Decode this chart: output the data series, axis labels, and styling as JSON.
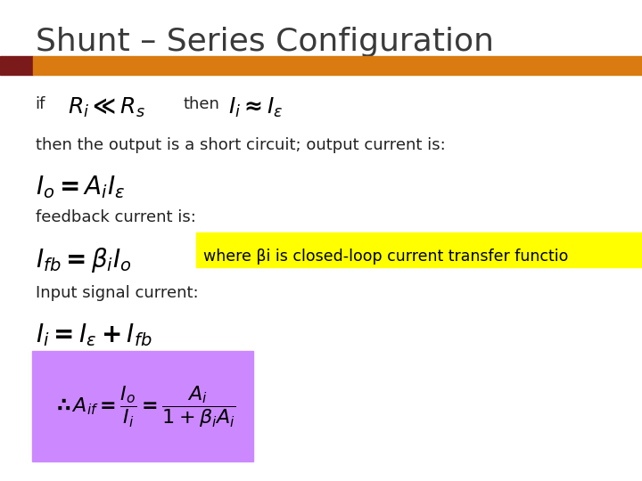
{
  "title": "Shunt – Series Configuration",
  "title_color": "#3a3a3a",
  "title_fontsize": 26,
  "bg_color": "#ffffff",
  "bar_dark_color": "#7B1A1A",
  "bar_orange_color": "#D97B10",
  "line1_annotation": "where βi is closed-loop current transfer functio",
  "line5_annot_bg": "#FFFF00",
  "line2_text": "then the output is a short circuit; output current is:",
  "line4_text": "feedback current is:",
  "line6_text": "Input signal current:",
  "box_bg": "#CC88FF",
  "text_color": "#222222",
  "math_color": "#000000",
  "text_fontsize": 13,
  "math_fontsize": 16
}
